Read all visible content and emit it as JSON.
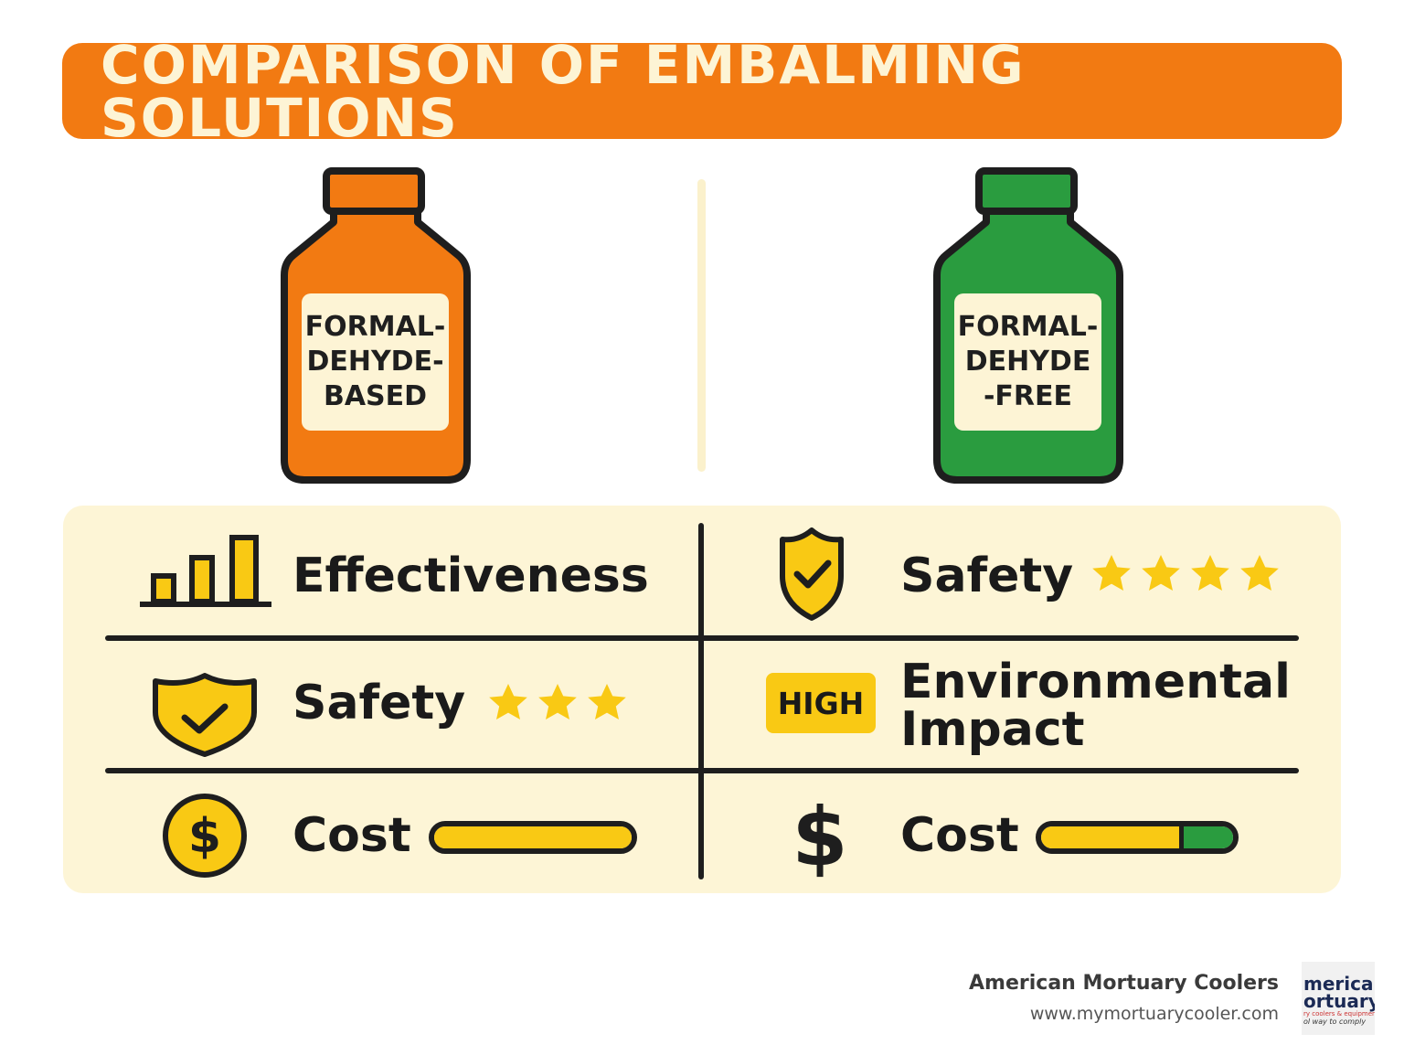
{
  "title": "COMPARISON OF EMBALMING SOLUTIONS",
  "colors": {
    "orange": "#f27a12",
    "green": "#2a9c3f",
    "yellow": "#f9c914",
    "cream": "#fdf5d6",
    "dark": "#1e1e1e"
  },
  "bottles": [
    {
      "color": "#f27a12",
      "label_lines": [
        "FORMAL-",
        "DEHYDE-",
        "BASED"
      ]
    },
    {
      "color": "#2a9c3f",
      "label_lines": [
        "FORMAL-",
        "DEHYDE",
        "-FREE"
      ]
    }
  ],
  "comparison": {
    "left": {
      "effectiveness": {
        "label": "Effectiveness",
        "icon": "bar-chart-icon"
      },
      "safety": {
        "label": "Safety",
        "icon": "shield-check-icon",
        "stars": 3
      },
      "cost": {
        "label": "Cost",
        "icon": "dollar-coin-icon",
        "bar_fill": 1.0
      }
    },
    "right": {
      "safety": {
        "label": "Safety",
        "icon": "shield-check-icon",
        "stars": 4
      },
      "environmental": {
        "label_lines": [
          "Environmental",
          "Impact"
        ],
        "badge": "HIGH"
      },
      "cost": {
        "label": "Cost",
        "icon": "dollar-sign-icon",
        "bar_fill": 0.72
      }
    }
  },
  "footer": {
    "company": "American Mortuary Coolers",
    "url": "www.mymortuarycooler.com",
    "logo_lines": [
      "merican",
      "ortuary",
      "ry coolers & equipment",
      "ol way to comply"
    ]
  }
}
